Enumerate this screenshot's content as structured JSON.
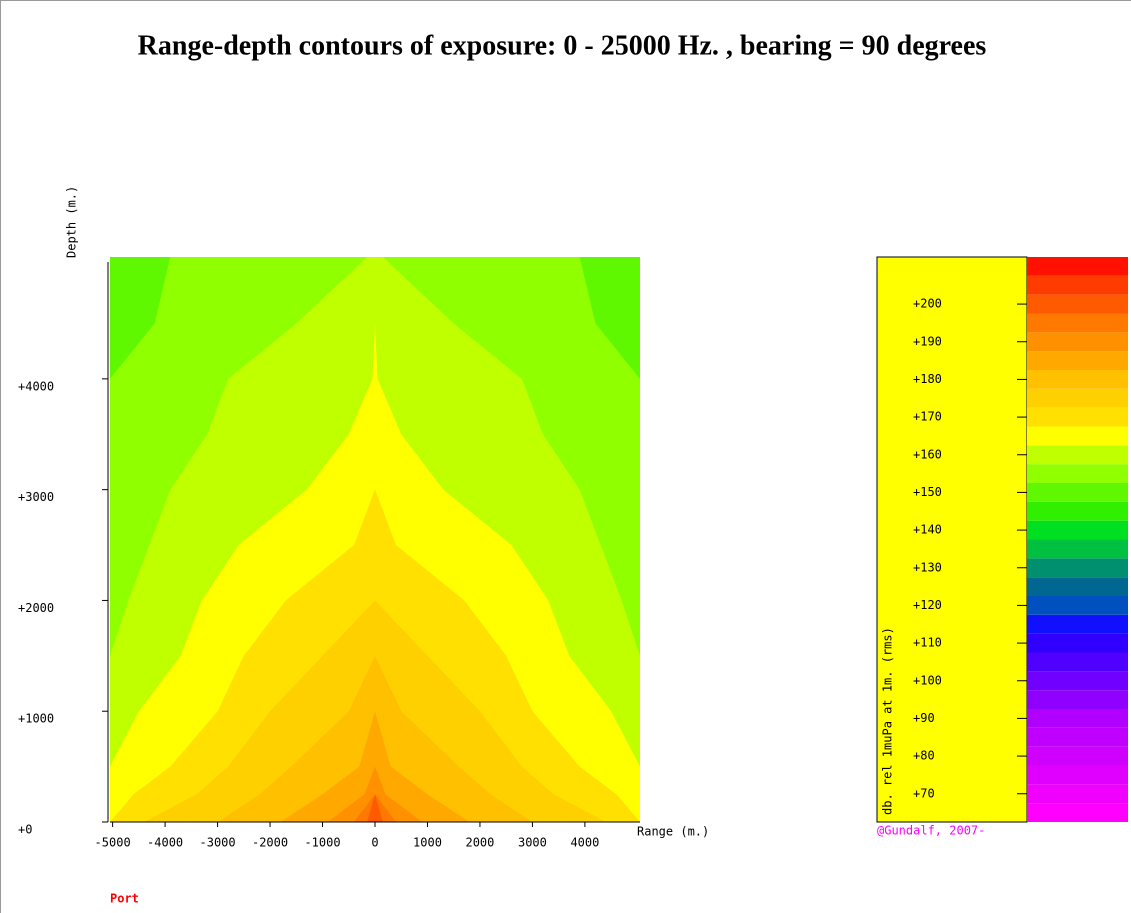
{
  "chart_data": {
    "type": "contour",
    "title": "Range-depth contours of exposure: 0 - 25000 Hz. , bearing = 90 degrees",
    "x_label": "Range (m.)",
    "y_label": "Depth (m.)",
    "xlim": [
      -5050,
      5050
    ],
    "xticks": [
      -5000,
      -4000,
      -3000,
      -2000,
      -1000,
      0,
      1000,
      2000,
      3000,
      4000
    ],
    "ylim": [
      0,
      5100
    ],
    "yticks": [
      {
        "value": 0,
        "label": "+0"
      },
      {
        "value": 1000,
        "label": "+1000"
      },
      {
        "value": 2000,
        "label": "+2000"
      },
      {
        "value": 3000,
        "label": "+3000"
      },
      {
        "value": 4000,
        "label": "+4000"
      }
    ],
    "depths": [
      0,
      250,
      500,
      1000,
      1500,
      2000,
      2500,
      3000,
      3500,
      4000,
      4500,
      5100
    ],
    "levels": [
      {
        "value": 147.5,
        "half_widths": [
          5050,
          5050,
          5050,
          5050,
          5050,
          5050,
          5050,
          5050,
          5050,
          5050,
          5050,
          5050
        ]
      },
      {
        "value": 152.5,
        "half_widths": [
          5050,
          5050,
          5050,
          5050,
          5050,
          5050,
          5050,
          5050,
          5050,
          5050,
          4200,
          3900
        ]
      },
      {
        "value": 157.5,
        "half_widths": [
          5050,
          5050,
          5050,
          5050,
          5050,
          4700,
          4300,
          3900,
          3200,
          2800,
          1500,
          150
        ]
      },
      {
        "value": 162.5,
        "half_widths": [
          5050,
          5050,
          5050,
          4500,
          3700,
          3300,
          2600,
          1300,
          500,
          50,
          0,
          0
        ]
      },
      {
        "value": 167.5,
        "half_widths": [
          5050,
          4600,
          3900,
          3000,
          2500,
          1700,
          400,
          0,
          0,
          0,
          0,
          0
        ]
      },
      {
        "value": 172.5,
        "half_widths": [
          4400,
          3400,
          2800,
          2000,
          1000,
          0,
          0,
          0,
          0,
          0,
          0,
          0
        ]
      },
      {
        "value": 177.5,
        "half_widths": [
          3000,
          2200,
          1600,
          500,
          0,
          0,
          0,
          0,
          0,
          0,
          0,
          0
        ]
      },
      {
        "value": 182.5,
        "half_widths": [
          1800,
          1000,
          300,
          0,
          0,
          0,
          0,
          0,
          0,
          0,
          0,
          0
        ]
      },
      {
        "value": 187.5,
        "half_widths": [
          900,
          200,
          0,
          0,
          0,
          0,
          0,
          0,
          0,
          0,
          0,
          0
        ]
      },
      {
        "value": 192.5,
        "half_widths": [
          400,
          0,
          0,
          0,
          0,
          0,
          0,
          0,
          0,
          0,
          0,
          0
        ]
      },
      {
        "value": 197.5,
        "half_widths": [
          150,
          0,
          0,
          0,
          0,
          0,
          0,
          0,
          0,
          0,
          0,
          0
        ]
      }
    ],
    "colorbar": {
      "label": "db. rel 1muPa at 1m. (rms)",
      "lim": [
        62.5,
        212.5
      ],
      "ticks": [
        {
          "value": 70,
          "label": "+70"
        },
        {
          "value": 80,
          "label": "+80"
        },
        {
          "value": 90,
          "label": "+90"
        },
        {
          "value": 100,
          "label": "+100"
        },
        {
          "value": 110,
          "label": "+110"
        },
        {
          "value": 120,
          "label": "+120"
        },
        {
          "value": 130,
          "label": "+130"
        },
        {
          "value": 140,
          "label": "+140"
        },
        {
          "value": 150,
          "label": "+150"
        },
        {
          "value": 160,
          "label": "+160"
        },
        {
          "value": 170,
          "label": "+170"
        },
        {
          "value": 180,
          "label": "+180"
        },
        {
          "value": 190,
          "label": "+190"
        },
        {
          "value": 200,
          "label": "+200"
        }
      ],
      "band_edges": [
        62.5,
        67.5,
        72.5,
        77.5,
        82.5,
        87.5,
        92.5,
        97.5,
        102.5,
        107.5,
        112.5,
        117.5,
        122.5,
        127.5,
        132.5,
        137.5,
        142.5,
        147.5,
        152.5,
        157.5,
        162.5,
        167.5,
        172.5,
        177.5,
        182.5,
        187.5,
        192.5,
        197.5,
        202.5,
        207.5,
        212.5
      ],
      "band_colors": [
        "#ff00ff",
        "#f000ff",
        "#e000ff",
        "#d000ff",
        "#c000ff",
        "#b000ff",
        "#9000ff",
        "#7000ff",
        "#5000ff",
        "#3000ff",
        "#1010ff",
        "#0050c0",
        "#006890",
        "#009070",
        "#00c040",
        "#00e020",
        "#30f000",
        "#60f800",
        "#90ff00",
        "#c0ff00",
        "#ffff00",
        "#ffe000",
        "#ffd000",
        "#ffc000",
        "#ffa800",
        "#ff9000",
        "#ff7800",
        "#ff5a00",
        "#ff3c00",
        "#ff1000"
      ]
    },
    "credit": "@Gundalf, 2007-",
    "side_label": "Port"
  }
}
